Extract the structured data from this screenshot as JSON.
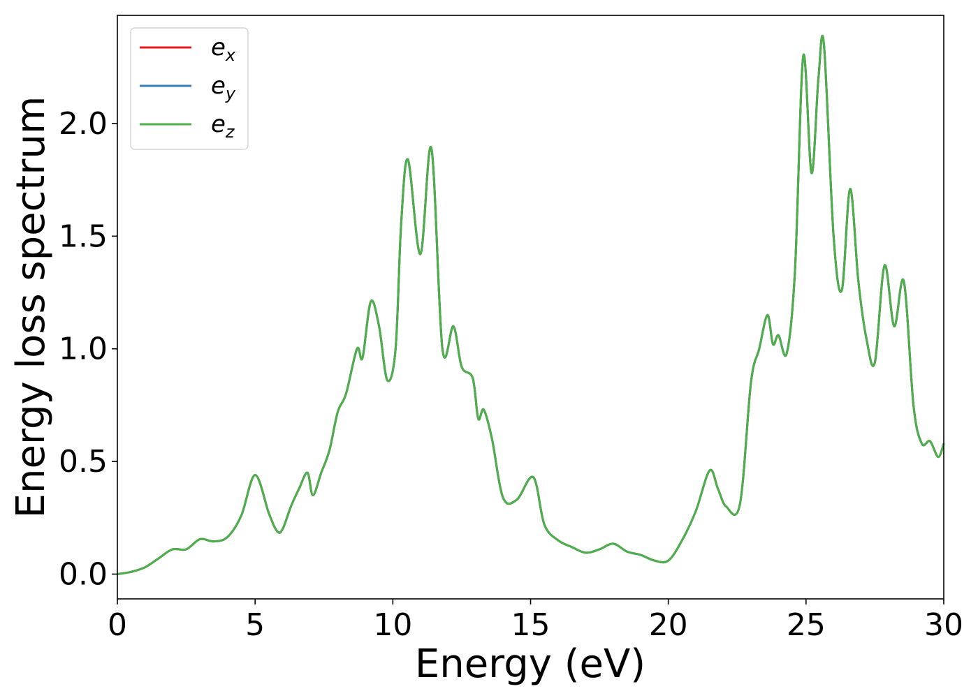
{
  "chart_data": {
    "type": "line",
    "xlabel": "Energy (eV)",
    "ylabel": "Energy loss spectrum",
    "xlim": [
      0,
      30
    ],
    "ylim": [
      -0.11,
      2.48
    ],
    "xticks": [
      0,
      5,
      10,
      15,
      20,
      25,
      30
    ],
    "xtick_labels": [
      "0",
      "5",
      "10",
      "15",
      "20",
      "25",
      "30"
    ],
    "yticks": [
      0.0,
      0.5,
      1.0,
      1.5,
      2.0
    ],
    "ytick_labels": [
      "0.0",
      "0.5",
      "1.0",
      "1.5",
      "2.0"
    ],
    "grid": false,
    "legend_position": "top-left",
    "x": [
      0,
      0.5,
      1.0,
      1.5,
      2.0,
      2.5,
      3.0,
      3.5,
      4.0,
      4.5,
      5.0,
      5.5,
      5.8,
      6.0,
      6.3,
      6.6,
      6.9,
      7.1,
      7.4,
      7.7,
      8.0,
      8.3,
      8.7,
      8.9,
      9.2,
      9.5,
      9.8,
      10.1,
      10.3,
      10.55,
      11.0,
      11.4,
      11.8,
      12.2,
      12.5,
      12.9,
      13.1,
      13.3,
      13.6,
      14.0,
      14.5,
      15.1,
      15.5,
      16.0,
      16.5,
      17.0,
      17.5,
      18.0,
      18.5,
      19.0,
      19.5,
      20.0,
      20.5,
      21.0,
      21.5,
      21.8,
      22.1,
      22.6,
      23.0,
      23.3,
      23.6,
      23.8,
      24.0,
      24.3,
      24.6,
      24.9,
      25.2,
      25.45,
      25.65,
      26.0,
      26.3,
      26.6,
      26.9,
      27.2,
      27.5,
      27.85,
      28.2,
      28.55,
      28.9,
      29.2,
      29.5,
      29.8,
      30.0
    ],
    "series": [
      {
        "name": "e_x",
        "color": "#e41a1c",
        "values": [
          0.0,
          0.01,
          0.03,
          0.07,
          0.11,
          0.11,
          0.155,
          0.145,
          0.165,
          0.26,
          0.44,
          0.27,
          0.19,
          0.2,
          0.3,
          0.38,
          0.45,
          0.35,
          0.45,
          0.55,
          0.72,
          0.8,
          1.0,
          0.96,
          1.21,
          1.1,
          0.86,
          1.0,
          1.55,
          1.84,
          1.42,
          1.89,
          1.0,
          1.1,
          0.92,
          0.87,
          0.69,
          0.73,
          0.6,
          0.34,
          0.33,
          0.43,
          0.22,
          0.15,
          0.12,
          0.095,
          0.11,
          0.135,
          0.1,
          0.085,
          0.06,
          0.06,
          0.15,
          0.28,
          0.46,
          0.38,
          0.3,
          0.31,
          0.85,
          1.0,
          1.15,
          1.02,
          1.06,
          0.98,
          1.35,
          2.3,
          1.78,
          2.2,
          2.35,
          1.5,
          1.26,
          1.71,
          1.3,
          1.04,
          0.94,
          1.37,
          1.1,
          1.3,
          0.75,
          0.58,
          0.59,
          0.52,
          0.58
        ]
      },
      {
        "name": "e_y",
        "color": "#377eb8",
        "values": [
          0.0,
          0.01,
          0.03,
          0.07,
          0.11,
          0.11,
          0.155,
          0.145,
          0.165,
          0.26,
          0.44,
          0.27,
          0.19,
          0.2,
          0.3,
          0.38,
          0.45,
          0.35,
          0.45,
          0.55,
          0.72,
          0.8,
          1.0,
          0.96,
          1.21,
          1.1,
          0.86,
          1.0,
          1.55,
          1.84,
          1.42,
          1.89,
          1.0,
          1.1,
          0.92,
          0.87,
          0.69,
          0.73,
          0.6,
          0.34,
          0.33,
          0.43,
          0.22,
          0.15,
          0.12,
          0.095,
          0.11,
          0.135,
          0.1,
          0.085,
          0.06,
          0.06,
          0.15,
          0.28,
          0.46,
          0.38,
          0.3,
          0.31,
          0.85,
          1.0,
          1.15,
          1.02,
          1.06,
          0.98,
          1.35,
          2.3,
          1.78,
          2.2,
          2.35,
          1.5,
          1.26,
          1.71,
          1.3,
          1.04,
          0.94,
          1.37,
          1.1,
          1.3,
          0.75,
          0.58,
          0.59,
          0.52,
          0.58
        ]
      },
      {
        "name": "e_z",
        "color": "#4daf4a",
        "values": [
          0.0,
          0.01,
          0.03,
          0.07,
          0.11,
          0.11,
          0.155,
          0.145,
          0.165,
          0.26,
          0.44,
          0.27,
          0.19,
          0.2,
          0.3,
          0.38,
          0.45,
          0.35,
          0.45,
          0.55,
          0.72,
          0.8,
          1.0,
          0.96,
          1.21,
          1.1,
          0.86,
          1.0,
          1.55,
          1.84,
          1.42,
          1.89,
          1.0,
          1.1,
          0.92,
          0.87,
          0.69,
          0.73,
          0.6,
          0.34,
          0.33,
          0.43,
          0.22,
          0.15,
          0.12,
          0.095,
          0.11,
          0.135,
          0.1,
          0.085,
          0.06,
          0.06,
          0.15,
          0.28,
          0.46,
          0.38,
          0.3,
          0.31,
          0.85,
          1.0,
          1.15,
          1.02,
          1.06,
          0.98,
          1.35,
          2.3,
          1.78,
          2.2,
          2.35,
          1.5,
          1.26,
          1.71,
          1.3,
          1.04,
          0.94,
          1.37,
          1.1,
          1.3,
          0.75,
          0.58,
          0.59,
          0.52,
          0.58
        ]
      }
    ],
    "legend": [
      {
        "base": "e",
        "sub": "x"
      },
      {
        "base": "e",
        "sub": "y"
      },
      {
        "base": "e",
        "sub": "z"
      }
    ]
  }
}
